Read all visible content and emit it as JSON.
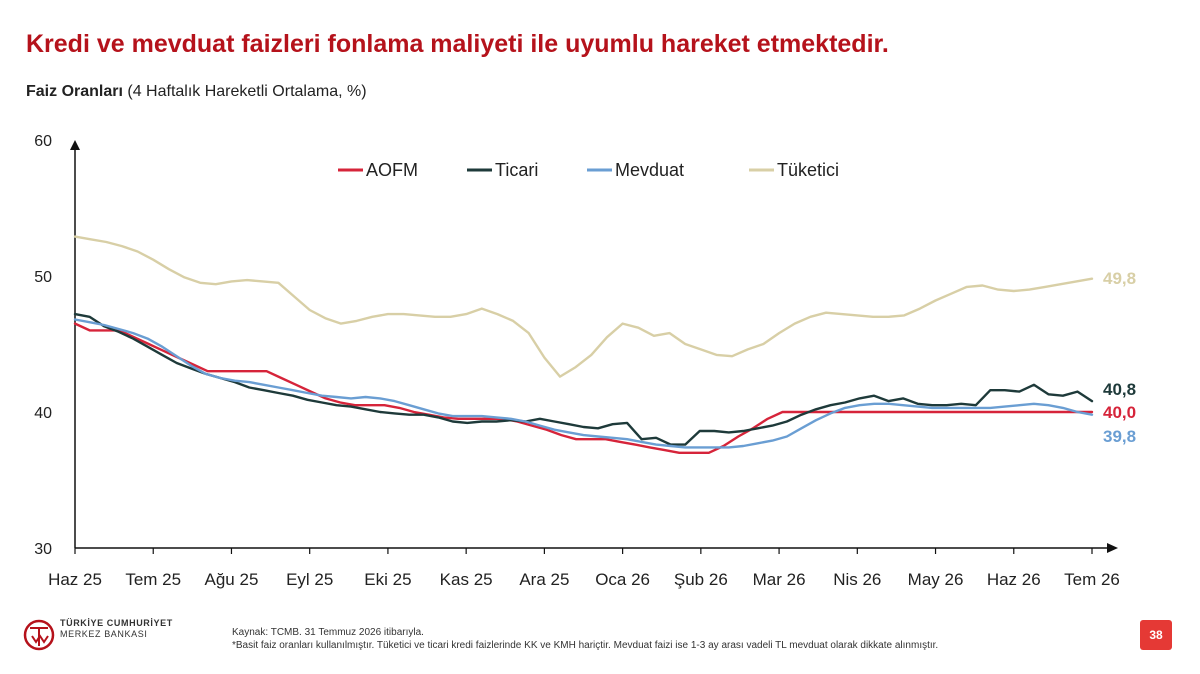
{
  "page": {
    "title": "Kredi ve mevduat faizleri fonlama maliyeti ile uyumlu hareket etmektedir.",
    "subtitle_bold": "Faiz Oranları",
    "subtitle_rest": " (4 Haftalık Hareketli Ortalama, %)",
    "number": "38"
  },
  "footer": {
    "bank_line1": "TÜRKİYE CUMHURİYET",
    "bank_line2": "MERKEZ BANKASI",
    "source": "Kaynak: TCMB. 31 Temmuz 2026 itibarıyla.",
    "note": "*Basit faiz oranları kullanılmıştır. Tüketici ve ticari kredi faizlerinde KK ve KMH hariçtir. Mevduat faizi ise 1-3 ay arası vadeli TL mevduat olarak dikkate alınmıştır."
  },
  "colors": {
    "brand": "#b5121b",
    "AOFM": "#d6243a",
    "Ticari": "#1e3a3a",
    "Mevduat": "#6a9ed3",
    "Tüketici": "#d8cfa6"
  },
  "chart_data": {
    "type": "line",
    "ylim": [
      30,
      60
    ],
    "yticks": [
      "30",
      "40",
      "50",
      "60"
    ],
    "xticks": [
      "Haz 25",
      "Tem 25",
      "Ağu 25",
      "Eyl 25",
      "Eki 25",
      "Kas 25",
      "Ara 25",
      "Oca 26",
      "Şub 26",
      "Mar 26",
      "Nis 26",
      "May 26",
      "Haz 26",
      "Tem 26"
    ],
    "legend_position": "top-center",
    "grid": false,
    "end_labels": {
      "Tüketici": "49,8",
      "Ticari": "40,8",
      "AOFM": "40,0",
      "Mevduat": "39,8"
    },
    "series": [
      {
        "name": "AOFM",
        "values": [
          46.5,
          46.0,
          46.0,
          46.0,
          45.5,
          45.0,
          44.5,
          44.0,
          43.5,
          43.0,
          43.0,
          43.0,
          43.0,
          43.0,
          42.5,
          42.0,
          41.5,
          41.0,
          40.7,
          40.5,
          40.5,
          40.5,
          40.3,
          40.0,
          39.8,
          39.6,
          39.5,
          39.5,
          39.5,
          39.5,
          39.3,
          39.0,
          38.7,
          38.3,
          38.0,
          38.0,
          38.0,
          37.8,
          37.6,
          37.4,
          37.2,
          37.0,
          37.0,
          37.0,
          37.5,
          38.2,
          38.8,
          39.5,
          40.0,
          40.0,
          40.0,
          40.0,
          40.0,
          40.0,
          40.0,
          40.0,
          40.0,
          40.0,
          40.0,
          40.0,
          40.0,
          40.0,
          40.0,
          40.0,
          40.0,
          40.0,
          40.0,
          40.0,
          40.0,
          40.0
        ]
      },
      {
        "name": "Ticari",
        "values": [
          47.2,
          47.0,
          46.3,
          45.9,
          45.4,
          44.8,
          44.2,
          43.6,
          43.2,
          42.8,
          42.5,
          42.2,
          41.8,
          41.6,
          41.4,
          41.2,
          40.9,
          40.7,
          40.5,
          40.4,
          40.2,
          40.0,
          39.9,
          39.8,
          39.8,
          39.6,
          39.3,
          39.2,
          39.3,
          39.3,
          39.4,
          39.3,
          39.5,
          39.3,
          39.1,
          38.9,
          38.8,
          39.1,
          39.2,
          38.0,
          38.1,
          37.6,
          37.6,
          38.6,
          38.6,
          38.5,
          38.6,
          38.8,
          39.0,
          39.3,
          39.8,
          40.2,
          40.5,
          40.7,
          41.0,
          41.2,
          40.8,
          41.0,
          40.6,
          40.5,
          40.5,
          40.6,
          40.5,
          41.6,
          41.6,
          41.5,
          42.0,
          41.3,
          41.2,
          41.5,
          40.8
        ]
      },
      {
        "name": "Mevduat",
        "values": [
          46.8,
          46.6,
          46.4,
          46.1,
          45.8,
          45.4,
          44.8,
          44.1,
          43.4,
          42.8,
          42.5,
          42.3,
          42.2,
          42.0,
          41.8,
          41.6,
          41.4,
          41.2,
          41.1,
          41.0,
          41.1,
          41.0,
          40.8,
          40.5,
          40.2,
          39.9,
          39.7,
          39.7,
          39.7,
          39.6,
          39.5,
          39.3,
          39.0,
          38.7,
          38.5,
          38.3,
          38.2,
          38.1,
          38.0,
          37.8,
          37.6,
          37.5,
          37.4,
          37.4,
          37.4,
          37.4,
          37.5,
          37.7,
          37.9,
          38.2,
          38.8,
          39.4,
          39.9,
          40.3,
          40.5,
          40.6,
          40.6,
          40.5,
          40.4,
          40.3,
          40.3,
          40.3,
          40.3,
          40.3,
          40.4,
          40.5,
          40.6,
          40.5,
          40.3,
          40.0,
          39.8
        ]
      },
      {
        "name": "Tüketici",
        "values": [
          52.9,
          52.7,
          52.5,
          52.2,
          51.8,
          51.2,
          50.5,
          49.9,
          49.5,
          49.4,
          49.6,
          49.7,
          49.6,
          49.5,
          48.5,
          47.5,
          46.9,
          46.5,
          46.7,
          47.0,
          47.2,
          47.2,
          47.1,
          47.0,
          47.0,
          47.2,
          47.6,
          47.2,
          46.7,
          45.8,
          44.0,
          42.6,
          43.3,
          44.2,
          45.5,
          46.5,
          46.2,
          45.6,
          45.8,
          45.0,
          44.6,
          44.2,
          44.1,
          44.6,
          45.0,
          45.8,
          46.5,
          47.0,
          47.3,
          47.2,
          47.1,
          47.0,
          47.0,
          47.1,
          47.6,
          48.2,
          48.7,
          49.2,
          49.3,
          49.0,
          48.9,
          49.0,
          49.2,
          49.4,
          49.6,
          49.8
        ]
      }
    ]
  }
}
